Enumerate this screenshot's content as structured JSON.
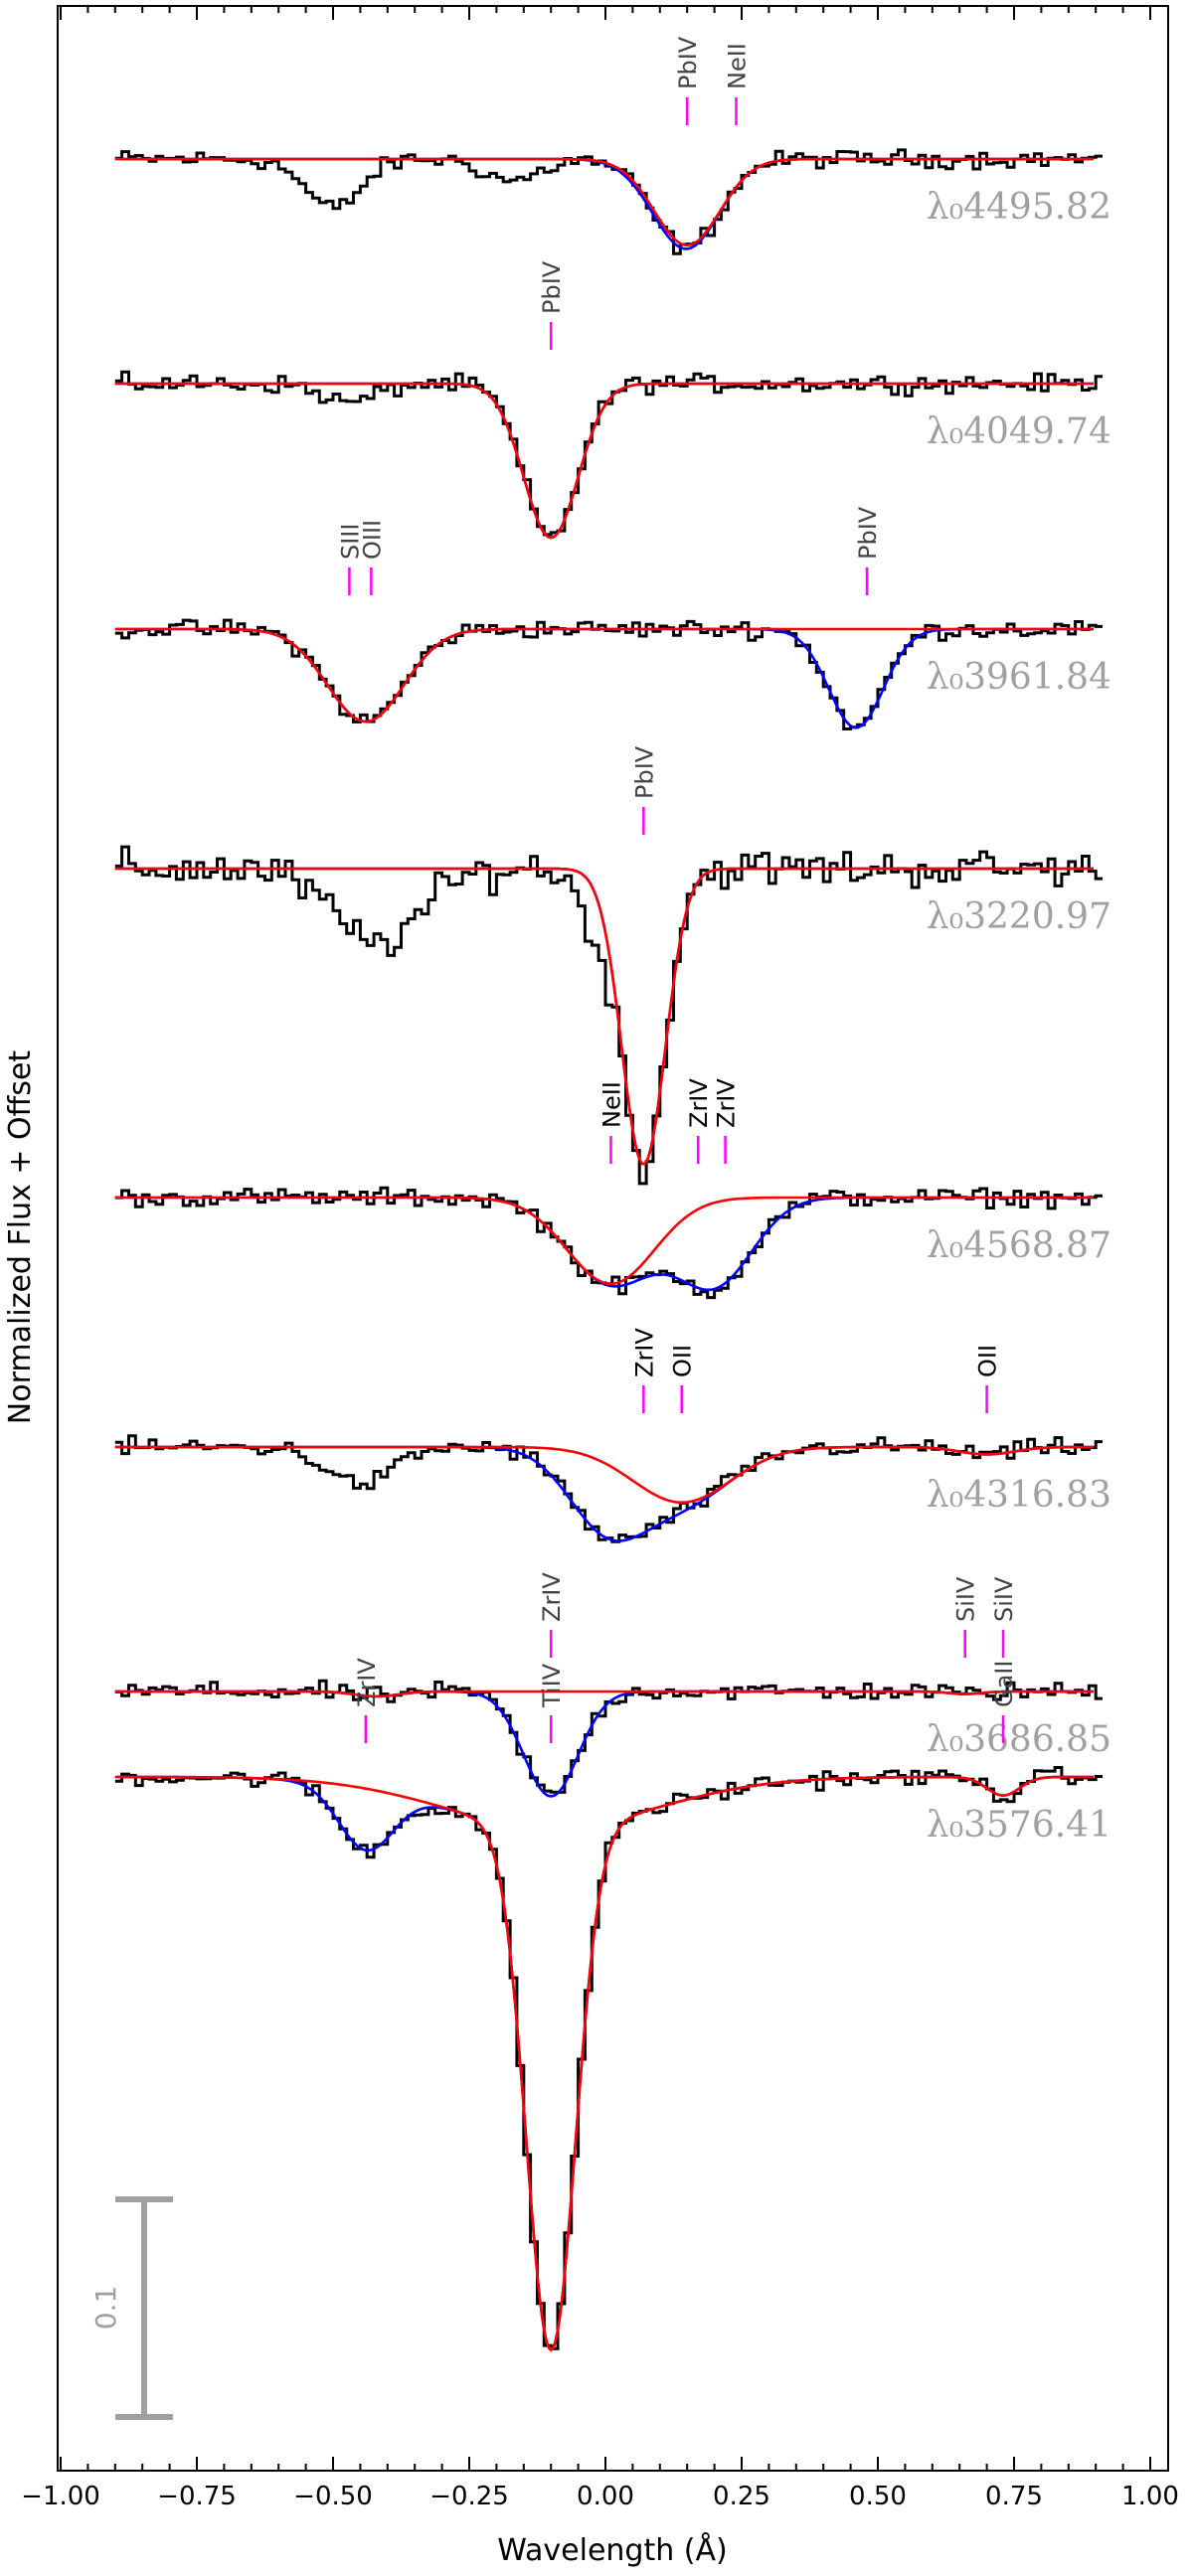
{
  "chart_data": {
    "type": "line",
    "xlabel": "Wavelength (Å)",
    "ylabel": "Normalized Flux + Offset",
    "xlim": [
      -1.05,
      1.02
    ],
    "xticks": [
      -1.0,
      -0.75,
      -0.5,
      -0.25,
      0.0,
      0.25,
      0.5,
      0.75,
      1.0
    ],
    "xtick_labels": [
      "−1.00",
      "−0.75",
      "−0.50",
      "−0.25",
      "0.00",
      "0.25",
      "0.50",
      "0.75",
      "1.00"
    ],
    "grid": false,
    "scale_bar_label": "0.1",
    "colors": {
      "observed": "#000000",
      "total_model": "#0000ff",
      "component_model": "#ff0000",
      "line_marker": "#ff00ff",
      "annotation": "#a0a0a0"
    },
    "panels": [
      {
        "lambda_label": "λ₀4495.82",
        "continuum_offset": 7.0,
        "lines": [
          {
            "ion": "PbIV",
            "x": 0.15
          },
          {
            "ion": "NeII",
            "x": 0.24
          }
        ],
        "absorptions": [
          {
            "center": -0.5,
            "depth": 0.08,
            "width": 0.05,
            "fit": false
          },
          {
            "center": -0.17,
            "depth": 0.035,
            "width": 0.05,
            "fit": false
          },
          {
            "center": 0.15,
            "depth": 0.14,
            "width": 0.06,
            "fit": true,
            "main": true
          },
          {
            "center": 0.1,
            "depth": 0.008,
            "width": 0.06,
            "fit": true
          }
        ]
      },
      {
        "lambda_label": "λ₀4049.74",
        "continuum_offset": 6.0,
        "lines": [
          {
            "ion": "PbIV",
            "x": -0.1
          }
        ],
        "absorptions": [
          {
            "center": -0.1,
            "depth": 0.25,
            "width": 0.05,
            "fit": true,
            "main": true
          },
          {
            "center": -0.47,
            "depth": 0.03,
            "width": 0.05,
            "fit": false
          }
        ]
      },
      {
        "lambda_label": "λ₀3961.84",
        "continuum_offset": 5.0,
        "lines": [
          {
            "ion": "SIII",
            "x": -0.47
          },
          {
            "ion": "OIII",
            "x": -0.43
          },
          {
            "ion": "PbIV",
            "x": 0.48
          }
        ],
        "absorptions": [
          {
            "center": -0.44,
            "depth": 0.15,
            "width": 0.07,
            "fit": true,
            "main": true
          },
          {
            "center": 0.46,
            "depth": 0.16,
            "width": 0.05,
            "fit": true
          }
        ]
      },
      {
        "lambda_label": "λ₀3220.97",
        "continuum_offset": 4.0,
        "lines": [
          {
            "ion": "PbIV",
            "x": 0.07
          }
        ],
        "absorptions": [
          {
            "center": 0.07,
            "depth": 0.48,
            "width": 0.04,
            "fit": true,
            "main": true
          },
          {
            "center": -0.42,
            "depth": 0.12,
            "width": 0.08,
            "fit": false
          },
          {
            "center": -0.02,
            "depth": 0.08,
            "width": 0.03,
            "fit": false
          }
        ]
      },
      {
        "lambda_label": "λ₀4568.87",
        "continuum_offset": 3.0,
        "lines": [
          {
            "ion": "NeII",
            "x": 0.01
          },
          {
            "ion": "ZrIV",
            "x": 0.17
          },
          {
            "ion": "ZrIV",
            "x": 0.22
          }
        ],
        "absorptions": [
          {
            "center": 0.01,
            "depth": 0.14,
            "width": 0.08,
            "fit": true,
            "main": true
          },
          {
            "center": 0.2,
            "depth": 0.14,
            "width": 0.07,
            "fit": true
          }
        ]
      },
      {
        "lambda_label": "λ₀4316.83",
        "continuum_offset": 2.0,
        "lines": [
          {
            "ion": "ZrIV",
            "x": 0.07
          },
          {
            "ion": "OII",
            "x": 0.14
          },
          {
            "ion": "OII",
            "x": 0.7
          }
        ],
        "absorptions": [
          {
            "center": 0.14,
            "depth": 0.09,
            "width": 0.09,
            "fit": true,
            "main": true
          },
          {
            "center": 0.0,
            "depth": 0.12,
            "width": 0.07,
            "fit": true
          },
          {
            "center": 0.7,
            "depth": 0.012,
            "width": 0.05,
            "fit": true,
            "main": true
          },
          {
            "center": -0.45,
            "depth": 0.06,
            "width": 0.06,
            "fit": false
          }
        ]
      },
      {
        "lambda_label": "λ₀3686.85",
        "continuum_offset": 1.0,
        "lines": [
          {
            "ion": "ZrIV",
            "x": -0.1
          },
          {
            "ion": "SiIV",
            "x": 0.66
          },
          {
            "ion": "SiIV",
            "x": 0.73
          }
        ],
        "absorptions": [
          {
            "center": -0.42,
            "depth": 0.008,
            "width": 0.04,
            "fit": true,
            "main": true
          },
          {
            "center": -0.1,
            "depth": 0.17,
            "width": 0.05,
            "fit": true
          },
          {
            "center": 0.66,
            "depth": 0.004,
            "width": 0.03,
            "fit": true,
            "main": true
          }
        ]
      },
      {
        "lambda_label": "λ₀3576.41",
        "continuum_offset": 0.0,
        "lines": [
          {
            "ion": "ZrIV",
            "x": -0.44
          },
          {
            "ion": "TiIV",
            "x": -0.1
          },
          {
            "ion": "GaII",
            "x": 0.73
          }
        ],
        "absorptions": [
          {
            "center": -0.1,
            "depth": 0.85,
            "width": 0.045,
            "fit": true,
            "main": true
          },
          {
            "center": -0.1,
            "depth": 0.08,
            "width": 0.2,
            "fit": true,
            "main": true
          },
          {
            "center": -0.44,
            "depth": 0.1,
            "width": 0.05,
            "fit": true
          },
          {
            "center": 0.73,
            "depth": 0.03,
            "width": 0.03,
            "fit": true,
            "main": true
          }
        ]
      }
    ]
  }
}
